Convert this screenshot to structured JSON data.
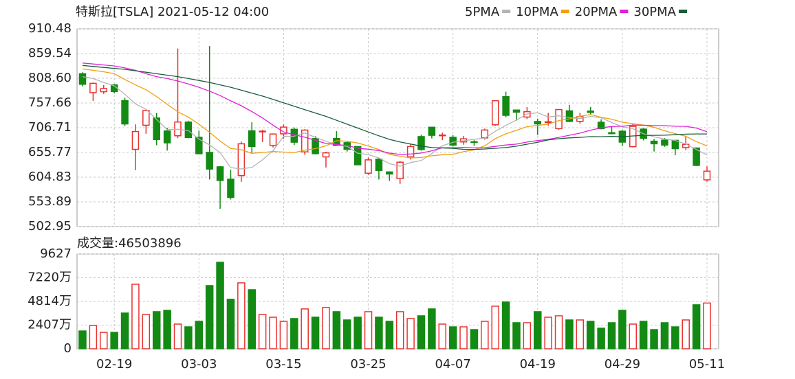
{
  "chart_data": [
    {
      "type": "candlestick",
      "title": "特斯拉[TSLA] 2021-05-12 04:00",
      "open": [
        818,
        779,
        780.9,
        795,
        762.6,
        662.1,
        711.8,
        726.7,
        700,
        690.1,
        718.3,
        687,
        655.8,
        626.1,
        600.6,
        608.2,
        700.3,
        699.4,
        670,
        694.1,
        703.4,
        656.9,
        684.3,
        646.6,
        684.6,
        675.8,
        667.9,
        613,
        641.9,
        615.6,
        601.8,
        646.6,
        688.4,
        707.7,
        690.3,
        687,
        677.4,
        677.8,
        685.7,
        712.7,
        770.7,
        743.1,
        728.7,
        719.6,
        717.4,
        704.8,
        741.5,
        719.8,
        741,
        717.96,
        696.4,
        699.5,
        667.6,
        703.8,
        678.9,
        681.06,
        680.76,
        665.8,
        664.9,
        599.24
      ],
      "high": [
        821,
        799.8,
        794.7,
        796.8,
        768.5,
        713.6,
        745,
        737.2,
        706.7,
        870,
        721.1,
        700.7,
        875,
        627.8,
        620.1,
        678.1,
        717.9,
        702.5,
        694.9,
        713.2,
        707.3,
        703.7,
        689.2,
        657.2,
        699.6,
        677.8,
        668,
        645.5,
        643.8,
        616.5,
        637.7,
        672,
        692.4,
        708.2,
        696.6,
        691.4,
        689.6,
        680.97,
        704.8,
        763,
        780.8,
        743.7,
        749.4,
        725.4,
        737.3,
        744.8,
        753.8,
        737.4,
        749.3,
        724,
        708.5,
        702.25,
        715.5,
        706,
        683.45,
        685.3,
        681.02,
        690,
        665.05,
        627.1
      ],
      "low": [
        792,
        762,
        776.3,
        777.4,
        710.2,
        619,
        694.2,
        670.6,
        659.5,
        685.1,
        685,
        651.7,
        600,
        539.5,
        558.8,
        595.2,
        655.1,
        677.2,
        666.1,
        684,
        671,
        651,
        652,
        624.6,
        668.8,
        657.5,
        630.1,
        609.5,
        599.9,
        597,
        591,
        641.1,
        659.4,
        684.7,
        681.4,
        667.8,
        671.7,
        669.4,
        682.1,
        710.7,
        728.03,
        721.3,
        724.6,
        691.8,
        710.7,
        702,
        718,
        715.2,
        732.6,
        703.35,
        693.6,
        668.5,
        666.1,
        680.5,
        657.7,
        667.34,
        650,
        660.2,
        627.61,
        595.6
      ],
      "close": [
        796.2,
        798.15,
        787.38,
        781.3,
        714.5,
        698.84,
        742.02,
        682.22,
        675.5,
        718.43,
        686.44,
        653.2,
        621.44,
        597.95,
        563,
        673.58,
        668.06,
        699.6,
        693.73,
        707.94,
        676.88,
        701.81,
        653.16,
        654.87,
        670,
        662.16,
        630.27,
        640.39,
        618.71,
        611.29,
        635.62,
        667.93,
        661.75,
        691.05,
        691.62,
        670.97,
        683.8,
        677.02,
        701.98,
        762.32,
        732.23,
        738.85,
        739.78,
        714.63,
        718.99,
        744.12,
        719.69,
        729.4,
        738.2,
        704.74,
        694.4,
        677,
        709.44,
        684.9,
        673.6,
        670.94,
        663.54,
        672.37,
        629.04,
        617.2
      ],
      "up_color": "#e8322f",
      "down_color": "#138a13",
      "lines": [
        {
          "name": "5PMA",
          "color": "#b4b4b4",
          "values": [
            812,
            808,
            800,
            793,
            775.5,
            756.0,
            744.8,
            723.8,
            702.6,
            703.4,
            700.9,
            683.2,
            671.0,
            655.5,
            624.4,
            621.8,
            624.8,
            640.4,
            659.6,
            688.6,
            689.2,
            696.0,
            686.7,
            678.9,
            671.3,
            668.4,
            654.1,
            651.5,
            644.3,
            632.6,
            627.3,
            634.8,
            639.1,
            653.5,
            669.6,
            676.7,
            679.8,
            682.9,
            685.1,
            699.2,
            711.5,
            722.5,
            735.0,
            737.6,
            728.9,
            731.3,
            727.4,
            725.4,
            730.1,
            727.2,
            717.3,
            708.7,
            704.8,
            694.1,
            687.9,
            683.2,
            680.5,
            673.1,
            661.9,
            650.6
          ]
        },
        {
          "name": "10PMA",
          "color": "#f0a010",
          "values": [
            828,
            825,
            822,
            818,
            806,
            795,
            785,
            771,
            755,
            739.5,
            728.5,
            714.0,
            697.4,
            679.1,
            663.9,
            661.4,
            654.0,
            655.7,
            657.6,
            656.5,
            655.5,
            660.4,
            663.6,
            669.3,
            680.0,
            678.8,
            675.1,
            669.1,
            661.6,
            652.0,
            647.9,
            644.5,
            645.3,
            648.9,
            651.1,
            652.0,
            657.3,
            661.0,
            669.3,
            684.4,
            694.1,
            701.2,
            709.0,
            711.4,
            714.1,
            721.4,
            725.0,
            730.2,
            733.9,
            728.1,
            724.3,
            718.1,
            715.1,
            712.1,
            707.6,
            700.3,
            694.6,
            689.0,
            678.0,
            669.3
          ]
        },
        {
          "name": "20PMA",
          "color": "#e020d8",
          "values": [
            840,
            838,
            836,
            834,
            830,
            825,
            818,
            812,
            808,
            803,
            797,
            790,
            782,
            773,
            762,
            752,
            740,
            727,
            712,
            698.0,
            692.0,
            687.2,
            680.5,
            674.2,
            672.0,
            670.1,
            664.6,
            662.4,
            659.6,
            654.3,
            651.7,
            652.5,
            654.5,
            659.1,
            665.6,
            665.4,
            666.2,
            665.1,
            665.5,
            668.2,
            671.0,
            672.9,
            677.2,
            680.2,
            682.6,
            686.7,
            691.2,
            695.6,
            701.6,
            706.3,
            709.2,
            709.7,
            712.1,
            711.8,
            710.9,
            710.9,
            709.8,
            709.6,
            706.0,
            698.7
          ]
        },
        {
          "name": "30PMA",
          "color": "#1a5c3a",
          "values": [
            835,
            833,
            831,
            829,
            827,
            824,
            821,
            818,
            815,
            812,
            808,
            804,
            800,
            795,
            790,
            784,
            778,
            772,
            765,
            758,
            751,
            744,
            737,
            730,
            722,
            714,
            706,
            698,
            690,
            682.7,
            677.3,
            673.0,
            668.8,
            665.8,
            665.0,
            664.1,
            662.1,
            662.0,
            662.9,
            664.3,
            665.8,
            668.7,
            672.7,
            676.6,
            681.7,
            684.1,
            685.8,
            686.8,
            688.3,
            688.2,
            688.8,
            688.0,
            689.8,
            690.8,
            691.0,
            691.3,
            692.3,
            693.4,
            693.8,
            693.9
          ]
        }
      ],
      "ylim": [
        502.95,
        910.48
      ],
      "yticks": [
        910.48,
        859.54,
        {
          "value": 808.6,
          "label": "808.60"
        },
        757.66,
        706.71,
        655.77,
        604.83,
        553.89,
        502.95
      ],
      "grid": true
    },
    {
      "type": "bar",
      "title": "成交量:46503896",
      "categories": [
        null,
        null,
        null,
        "02-19",
        null,
        null,
        null,
        null,
        null,
        null,
        null,
        "03-03",
        null,
        null,
        null,
        null,
        null,
        null,
        null,
        "03-15",
        null,
        null,
        null,
        null,
        null,
        null,
        null,
        "03-25",
        null,
        null,
        null,
        null,
        null,
        null,
        null,
        "04-07",
        null,
        null,
        null,
        null,
        null,
        null,
        null,
        "04-19",
        null,
        null,
        null,
        null,
        null,
        null,
        null,
        "04-29",
        null,
        null,
        null,
        null,
        null,
        null,
        null,
        "05-11"
      ],
      "values": [
        1810,
        2370,
        1670,
        1670,
        3630,
        6560,
        3490,
        3770,
        3910,
        2510,
        2230,
        2790,
        6420,
        8790,
        5030,
        6700,
        6000,
        3490,
        3210,
        2790,
        3070,
        4050,
        3210,
        4190,
        3770,
        2930,
        3210,
        3770,
        3210,
        2790,
        3770,
        3070,
        3350,
        4050,
        2510,
        2230,
        2230,
        1950,
        2790,
        4330,
        4750,
        2650,
        2650,
        3770,
        3210,
        3350,
        2930,
        2930,
        2790,
        2090,
        2650,
        3910,
        2510,
        2790,
        1950,
        2650,
        2230,
        2930,
        4470,
        4650
      ],
      "ylim": [
        0,
        9627
      ],
      "yticks": [
        9627,
        {
          "value": 7220,
          "label": "7220万"
        },
        {
          "value": 4814,
          "label": "4814万"
        },
        {
          "value": 2407,
          "label": "2407万"
        },
        0
      ],
      "grid": true
    }
  ]
}
